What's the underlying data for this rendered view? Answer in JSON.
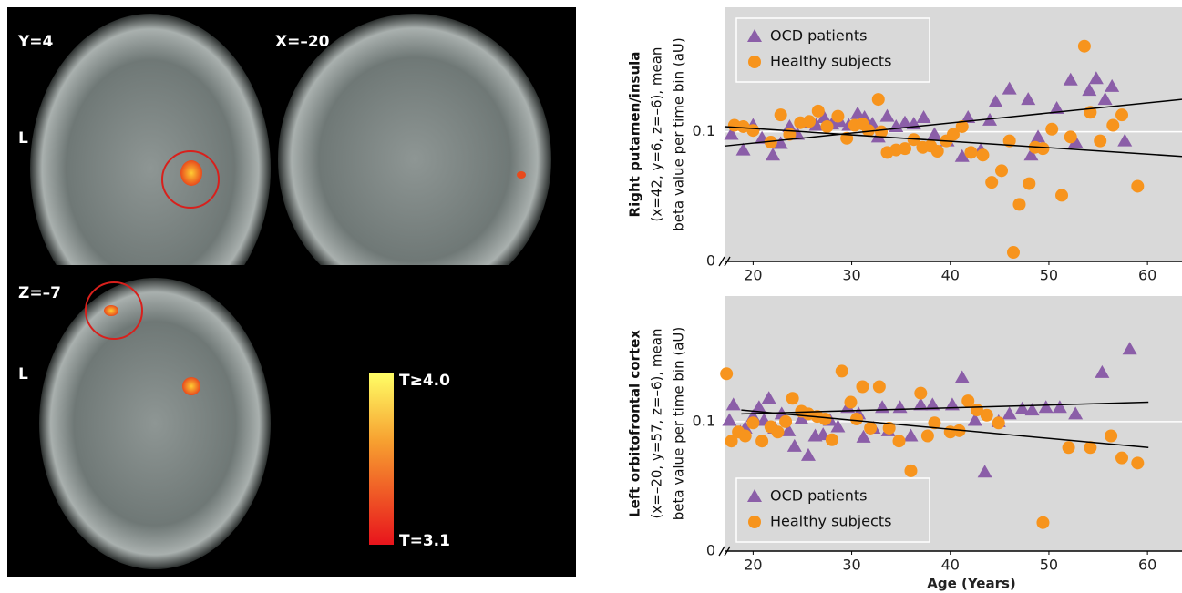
{
  "images": {
    "panels": [
      {
        "label": "Y=4",
        "side": "L"
      },
      {
        "label": "X=–20"
      },
      {
        "label": "Z=–7",
        "side": "L"
      }
    ],
    "colorbar": {
      "max_label": "T≥4.0",
      "min_label": "T=3.1"
    }
  },
  "chart_data": [
    {
      "type": "scatter",
      "ylabel": [
        "Right putamen/insula",
        "(x=42, y=6, z=–6), mean",
        "beta value per time bin (aU)"
      ],
      "xlim": [
        17.1,
        63.5
      ],
      "xticks": [
        20,
        30,
        40,
        50,
        60
      ],
      "ylim": [
        0,
        0.196
      ],
      "yticks": [
        0,
        0.1
      ],
      "grid": true,
      "legend": "upper left",
      "series": [
        {
          "name": "OCD patients",
          "color": "#8b5ea8",
          "marker": "triangle",
          "x": [
            17.8,
            19.0,
            20.0,
            20.9,
            22.0,
            22.8,
            23.7,
            24.5,
            25.6,
            26.4,
            27.2,
            28.0,
            28.8,
            29.7,
            30.6,
            31.3,
            32.1,
            32.7,
            33.6,
            34.5,
            35.4,
            36.3,
            37.3,
            38.4,
            39.7,
            41.2,
            41.8,
            43.1,
            44.0,
            44.6,
            46.0,
            47.9,
            48.2,
            48.9,
            50.8,
            52.2,
            52.7,
            54.1,
            54.8,
            55.7,
            56.4,
            57.7
          ],
          "y": [
            0.098,
            0.086,
            0.105,
            0.095,
            0.082,
            0.091,
            0.104,
            0.098,
            0.107,
            0.105,
            0.111,
            0.106,
            0.108,
            0.105,
            0.114,
            0.111,
            0.106,
            0.096,
            0.112,
            0.104,
            0.107,
            0.106,
            0.111,
            0.098,
            0.093,
            0.081,
            0.111,
            0.086,
            0.109,
            0.123,
            0.133,
            0.125,
            0.082,
            0.096,
            0.118,
            0.14,
            0.092,
            0.132,
            0.141,
            0.125,
            0.135,
            0.093
          ],
          "trend": {
            "x": [
              17.1,
              63.5
            ],
            "y": [
              0.089,
              0.125
            ]
          }
        },
        {
          "name": "Healthy subjects",
          "color": "#f7941d",
          "marker": "circle",
          "x": [
            18.1,
            19.0,
            20.0,
            21.8,
            22.8,
            23.7,
            24.8,
            25.7,
            26.6,
            27.5,
            28.6,
            29.5,
            30.3,
            31.1,
            31.7,
            32.7,
            33.0,
            33.6,
            34.5,
            35.4,
            36.3,
            37.2,
            38.0,
            38.7,
            39.6,
            40.3,
            41.2,
            42.1,
            43.3,
            44.2,
            45.2,
            46.0,
            46.4,
            47.0,
            48.0,
            48.6,
            49.4,
            50.3,
            51.3,
            52.2,
            53.6,
            54.2,
            55.2,
            56.5,
            57.4,
            59.0
          ],
          "y": [
            0.105,
            0.104,
            0.101,
            0.092,
            0.113,
            0.098,
            0.107,
            0.108,
            0.116,
            0.104,
            0.112,
            0.095,
            0.105,
            0.106,
            0.101,
            0.125,
            0.1,
            0.084,
            0.086,
            0.087,
            0.094,
            0.088,
            0.089,
            0.085,
            0.093,
            0.098,
            0.104,
            0.084,
            0.082,
            0.061,
            0.07,
            0.093,
            0.007,
            0.044,
            0.06,
            0.088,
            0.087,
            0.102,
            0.051,
            0.096,
            0.166,
            0.115,
            0.093,
            0.105,
            0.113,
            0.058
          ],
          "trend": {
            "x": [
              17.1,
              63.5
            ],
            "y": [
              0.104,
              0.081
            ]
          }
        }
      ]
    },
    {
      "type": "scatter",
      "ylabel": [
        "Left orbitofrontal cortex",
        "(x=–20, y=57, z=–6), mean",
        "beta value per time bin (aU)"
      ],
      "xlabel": "Age (Years)",
      "xlim": [
        17.1,
        63.5
      ],
      "xticks": [
        20,
        30,
        40,
        50,
        60
      ],
      "ylim": [
        0,
        0.197
      ],
      "yticks": [
        0,
        0.1
      ],
      "grid": true,
      "legend": "lower left",
      "series": [
        {
          "name": "OCD patients",
          "color": "#8b5ea8",
          "marker": "triangle",
          "x": [
            17.6,
            18.0,
            18.7,
            19.2,
            20.0,
            20.6,
            21.1,
            21.6,
            22.2,
            22.9,
            23.6,
            24.2,
            24.9,
            25.6,
            26.3,
            27.1,
            27.8,
            28.6,
            29.6,
            30.7,
            31.2,
            32.2,
            33.1,
            33.7,
            34.9,
            36.0,
            37.0,
            38.2,
            40.2,
            41.2,
            42.5,
            43.5,
            44.9,
            46.0,
            47.3,
            48.3,
            49.7,
            51.1,
            52.7,
            55.4,
            58.2
          ],
          "y": [
            0.101,
            0.113,
            0.092,
            0.095,
            0.104,
            0.111,
            0.101,
            0.118,
            0.095,
            0.106,
            0.093,
            0.081,
            0.102,
            0.074,
            0.089,
            0.09,
            0.101,
            0.096,
            0.111,
            0.106,
            0.088,
            0.095,
            0.111,
            0.093,
            0.111,
            0.089,
            0.113,
            0.113,
            0.113,
            0.134,
            0.101,
            0.061,
            0.1,
            0.106,
            0.11,
            0.109,
            0.111,
            0.111,
            0.106,
            0.138,
            0.156
          ],
          "trend": {
            "x": [
              18.8,
              60.1
            ],
            "y": [
              0.106,
              0.115
            ]
          }
        },
        {
          "name": "Healthy subjects",
          "color": "#f7941d",
          "marker": "circle",
          "x": [
            17.3,
            17.8,
            18.5,
            19.2,
            20.0,
            20.9,
            21.8,
            22.5,
            23.3,
            24.0,
            24.9,
            25.6,
            26.5,
            27.3,
            28.0,
            29.0,
            29.9,
            30.5,
            31.1,
            31.9,
            32.8,
            33.8,
            34.8,
            36.0,
            37.0,
            37.7,
            38.4,
            40.0,
            40.9,
            41.8,
            42.7,
            43.7,
            44.9,
            49.4,
            52.0,
            54.2,
            56.3,
            57.4,
            59.0
          ],
          "y": [
            0.137,
            0.085,
            0.092,
            0.089,
            0.099,
            0.085,
            0.096,
            0.092,
            0.1,
            0.118,
            0.108,
            0.106,
            0.104,
            0.102,
            0.086,
            0.139,
            0.115,
            0.102,
            0.127,
            0.095,
            0.127,
            0.095,
            0.085,
            0.062,
            0.122,
            0.089,
            0.099,
            0.092,
            0.093,
            0.116,
            0.109,
            0.105,
            0.099,
            0.022,
            0.08,
            0.08,
            0.089,
            0.072,
            0.068
          ],
          "trend": {
            "x": [
              18.8,
              60.1
            ],
            "y": [
              0.109,
              0.08
            ]
          }
        }
      ]
    }
  ]
}
